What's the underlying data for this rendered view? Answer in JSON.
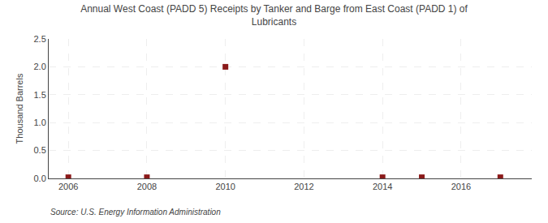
{
  "chart_data": {
    "type": "scatter",
    "title": "Annual West Coast (PADD 5) Receipts by Tanker and Barge from East Coast (PADD 1) of\nLubricants",
    "y_label": "Thousand Barrels",
    "source": "Source: U.S. Energy Information Administration",
    "x": [
      2006,
      2008,
      2010,
      2014,
      2015,
      2017
    ],
    "values": [
      0.02,
      0.02,
      2.0,
      0.02,
      0.02,
      0.02
    ],
    "color": "#8b1a1a",
    "marker": "square",
    "xlim": [
      2005.5,
      2017.8
    ],
    "xticks": [
      2006,
      2008,
      2010,
      2012,
      2014,
      2016
    ],
    "ylim": [
      0.0,
      2.5
    ],
    "yticks": [
      {
        "value": 0.0,
        "label": "0.0"
      },
      0.5,
      {
        "value": 1.0,
        "label": "1.0"
      },
      1.5,
      {
        "value": 2.0,
        "label": "2.0"
      },
      2.5
    ],
    "grid": true
  }
}
